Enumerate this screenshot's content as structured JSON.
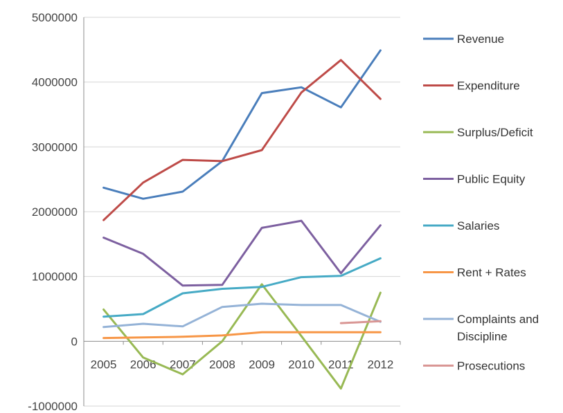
{
  "chart_data": {
    "type": "line",
    "title": "",
    "xlabel": "",
    "ylabel": "",
    "categories": [
      "2005",
      "2006",
      "2007",
      "2008",
      "2009",
      "2010",
      "2011",
      "2012"
    ],
    "ylim": [
      -1000000,
      5000000
    ],
    "yticks": [
      -1000000,
      0,
      1000000,
      2000000,
      3000000,
      4000000,
      5000000
    ],
    "ytick_labels": [
      "-1000000",
      "0",
      "1000000",
      "2000000",
      "3000000",
      "4000000",
      "5000000"
    ],
    "grid": true,
    "legend_position": "right",
    "series": [
      {
        "name": "Revenue",
        "color": "#4a7ebb",
        "values": [
          2370000,
          2200000,
          2310000,
          2780000,
          3830000,
          3920000,
          3610000,
          4490000
        ]
      },
      {
        "name": "Expenditure",
        "color": "#be4b48",
        "values": [
          1870000,
          2450000,
          2800000,
          2780000,
          2950000,
          3840000,
          4340000,
          3740000
        ]
      },
      {
        "name": "Surplus/Deficit",
        "color": "#98b954",
        "values": [
          490000,
          -250000,
          -510000,
          0,
          880000,
          80000,
          -730000,
          750000
        ]
      },
      {
        "name": "Public Equity",
        "color": "#7d60a0",
        "values": [
          1600000,
          1350000,
          860000,
          870000,
          1750000,
          1860000,
          1050000,
          1790000
        ]
      },
      {
        "name": "Salaries",
        "color": "#46aac5",
        "values": [
          380000,
          420000,
          740000,
          810000,
          840000,
          990000,
          1010000,
          1280000
        ]
      },
      {
        "name": "Rent + Rates",
        "color": "#f79646",
        "values": [
          50000,
          60000,
          70000,
          90000,
          140000,
          140000,
          140000,
          140000
        ]
      },
      {
        "name": "Complaints and Discipline",
        "name_lines": [
          "Complaints and",
          "Discipline"
        ],
        "color": "#95b3d7",
        "values": [
          220000,
          270000,
          230000,
          530000,
          580000,
          560000,
          560000,
          300000
        ]
      },
      {
        "name": "Prosecutions",
        "color": "#d99694",
        "values": [
          null,
          null,
          null,
          null,
          null,
          null,
          280000,
          310000
        ]
      }
    ]
  }
}
